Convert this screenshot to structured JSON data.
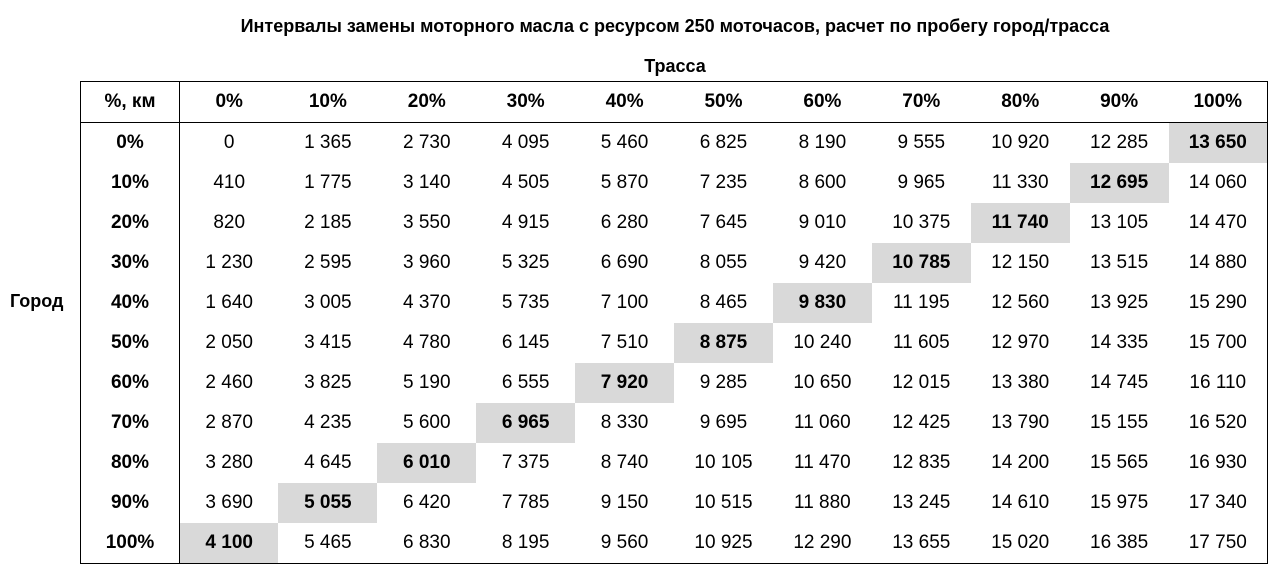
{
  "title": "Интервалы замены моторного масла с ресурсом 250 моточасов, расчет по пробегу город/трасса",
  "column_axis_label": "Трасса",
  "row_axis_label": "Город",
  "corner_label": "%, км",
  "highlight_color": "#d9d9d9",
  "columns": [
    "0%",
    "10%",
    "20%",
    "30%",
    "40%",
    "50%",
    "60%",
    "70%",
    "80%",
    "90%",
    "100%"
  ],
  "rows": [
    {
      "label": "0%",
      "values": [
        "0",
        "1 365",
        "2 730",
        "4 095",
        "5 460",
        "6 825",
        "8 190",
        "9 555",
        "10 920",
        "12 285",
        "13 650"
      ]
    },
    {
      "label": "10%",
      "values": [
        "410",
        "1 775",
        "3 140",
        "4 505",
        "5 870",
        "7 235",
        "8 600",
        "9 965",
        "11 330",
        "12 695",
        "14 060"
      ]
    },
    {
      "label": "20%",
      "values": [
        "820",
        "2 185",
        "3 550",
        "4 915",
        "6 280",
        "7 645",
        "9 010",
        "10 375",
        "11 740",
        "13 105",
        "14 470"
      ]
    },
    {
      "label": "30%",
      "values": [
        "1 230",
        "2 595",
        "3 960",
        "5 325",
        "6 690",
        "8 055",
        "9 420",
        "10 785",
        "12 150",
        "13 515",
        "14 880"
      ]
    },
    {
      "label": "40%",
      "values": [
        "1 640",
        "3 005",
        "4 370",
        "5 735",
        "7 100",
        "8 465",
        "9 830",
        "11 195",
        "12 560",
        "13 925",
        "15 290"
      ]
    },
    {
      "label": "50%",
      "values": [
        "2 050",
        "3 415",
        "4 780",
        "6 145",
        "7 510",
        "8 875",
        "10 240",
        "11 605",
        "12 970",
        "14 335",
        "15 700"
      ]
    },
    {
      "label": "60%",
      "values": [
        "2 460",
        "3 825",
        "5 190",
        "6 555",
        "7 920",
        "9 285",
        "10 650",
        "12 015",
        "13 380",
        "14 745",
        "16 110"
      ]
    },
    {
      "label": "70%",
      "values": [
        "2 870",
        "4 235",
        "5 600",
        "6 965",
        "8 330",
        "9 695",
        "11 060",
        "12 425",
        "13 790",
        "15 155",
        "16 520"
      ]
    },
    {
      "label": "80%",
      "values": [
        "3 280",
        "4 645",
        "6 010",
        "7 375",
        "8 740",
        "10 105",
        "11 470",
        "12 835",
        "14 200",
        "15 565",
        "16 930"
      ]
    },
    {
      "label": "90%",
      "values": [
        "3 690",
        "5 055",
        "6 420",
        "7 785",
        "9 150",
        "10 515",
        "11 880",
        "13 245",
        "14 610",
        "15 975",
        "17 340"
      ]
    },
    {
      "label": "100%",
      "values": [
        "4 100",
        "5 465",
        "6 830",
        "8 195",
        "9 560",
        "10 925",
        "12 290",
        "13 655",
        "15 020",
        "16 385",
        "17 750"
      ]
    }
  ]
}
